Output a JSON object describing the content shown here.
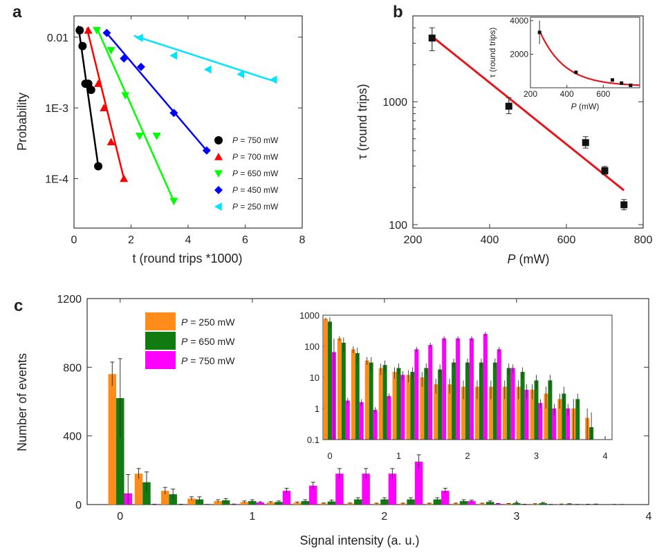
{
  "panels": {
    "a": {
      "letter": "a"
    },
    "b": {
      "letter": "b"
    },
    "c": {
      "letter": "c"
    }
  },
  "chart_data": [
    {
      "id": "a",
      "type": "scatter",
      "xlabel": "t (round trips *1000)",
      "ylabel": "Probability",
      "xlim": [
        0,
        8
      ],
      "ylim": [
        2e-05,
        0.02
      ],
      "yscale": "log",
      "xticks": [
        "0",
        "2",
        "4",
        "6",
        "8"
      ],
      "yticks": [
        {
          "v": 0.01,
          "label": "0.01"
        },
        {
          "v": 0.001,
          "label": "1E-3"
        },
        {
          "v": 0.0001,
          "label": "1E-4"
        }
      ],
      "legend_position": "bottom-right",
      "series": [
        {
          "name": "= 750 mW",
          "prefix": "P",
          "color": "#000000",
          "marker": "circle",
          "x": [
            0.2,
            0.3,
            0.4,
            0.5,
            0.6,
            0.85
          ],
          "y": [
            0.0125,
            0.0075,
            0.0022,
            0.0022,
            0.0018,
            0.00015
          ],
          "fit": [
            [
              0.15,
              0.0145
            ],
            [
              0.85,
              0.00015
            ]
          ]
        },
        {
          "name": "= 700 mW",
          "prefix": "P",
          "color": "#ff0000",
          "marker": "triangle-up",
          "x": [
            0.5,
            0.85,
            1.05,
            1.3,
            1.75
          ],
          "y": [
            0.0125,
            0.0022,
            0.001,
            0.00033,
            0.0001
          ],
          "fit": [
            [
              0.45,
              0.0135
            ],
            [
              1.75,
              0.0001
            ]
          ]
        },
        {
          "name": "= 650 mW",
          "prefix": "P",
          "color": "#00ff00",
          "marker": "triangle-down",
          "x": [
            0.8,
            1.3,
            1.8,
            2.3,
            2.9,
            3.5
          ],
          "y": [
            0.0125,
            0.0065,
            0.0015,
            0.0004,
            0.0004,
            4.8e-05
          ],
          "fit": [
            [
              0.8,
              0.0135
            ],
            [
              3.5,
              4.8e-05
            ]
          ]
        },
        {
          "name": "= 450 mW",
          "prefix": "P",
          "color": "#0000ff",
          "marker": "diamond",
          "x": [
            1.15,
            1.75,
            2.35,
            3.5,
            4.65
          ],
          "y": [
            0.0115,
            0.005,
            0.0038,
            0.00085,
            0.00025
          ],
          "fit": [
            [
              1.1,
              0.012
            ],
            [
              4.65,
              0.00025
            ]
          ]
        },
        {
          "name": "= 250 mW",
          "prefix": "P",
          "color": "#00e5ff",
          "marker": "triangle-left",
          "x": [
            2.3,
            3.5,
            4.7,
            5.85,
            7.0
          ],
          "y": [
            0.0098,
            0.0055,
            0.0035,
            0.003,
            0.0025
          ],
          "fit": [
            [
              2.1,
              0.0105
            ],
            [
              7.0,
              0.0024
            ]
          ]
        }
      ]
    },
    {
      "id": "b",
      "type": "scatter",
      "xlabel_italic": "P",
      "xlabel_rest": " (mW)",
      "ylabel": "τ (round trips)",
      "xlim": [
        200,
        800
      ],
      "ylim": [
        100,
        5000
      ],
      "yscale": "log",
      "xticks": [
        "200",
        "400",
        "600",
        "800"
      ],
      "yticks": [
        {
          "v": 1000,
          "label": "1000"
        },
        {
          "v": 100,
          "label": "100"
        }
      ],
      "points": [
        {
          "x": 250,
          "y": 3300,
          "err": [
            2600,
            4000
          ]
        },
        {
          "x": 450,
          "y": 920,
          "err": [
            800,
            1080
          ]
        },
        {
          "x": 650,
          "y": 465,
          "err": [
            420,
            520
          ]
        },
        {
          "x": 700,
          "y": 275,
          "err": [
            255,
            298
          ]
        },
        {
          "x": 750,
          "y": 145,
          "err": [
            132,
            160
          ]
        }
      ],
      "fit": [
        [
          250,
          3400
        ],
        [
          750,
          190
        ]
      ],
      "fit_color": "#e8141b",
      "inset": {
        "xlabel_italic": "P",
        "xlabel_rest": " (mW)",
        "ylabel": "τ (round trips)",
        "xlim": [
          200,
          800
        ],
        "ylim": [
          0,
          4200
        ],
        "xticks": [
          "200",
          "400",
          "600"
        ],
        "yticks": [
          "2000",
          "4000"
        ],
        "points": [
          {
            "x": 250,
            "y": 3300,
            "err": [
              2600,
              4000
            ]
          },
          {
            "x": 450,
            "y": 920,
            "err": [
              850,
              990
            ]
          },
          {
            "x": 650,
            "y": 465,
            "err": [
              420,
              510
            ]
          },
          {
            "x": 700,
            "y": 275,
            "err": [
              255,
              295
            ]
          },
          {
            "x": 750,
            "y": 145,
            "err": [
              130,
              160
            ]
          }
        ]
      }
    },
    {
      "id": "c",
      "type": "bar",
      "xlabel": "Signal intensity (a. u.)",
      "ylabel": "Number of events",
      "xlim": [
        -0.25,
        4
      ],
      "ylim": [
        0,
        1200
      ],
      "xticks": [
        "0",
        "1",
        "2",
        "3",
        "4"
      ],
      "yticks": [
        "0",
        "400",
        "800",
        "1200"
      ],
      "legend_position": "top-left",
      "bin_centers": [
        0,
        0.2,
        0.4,
        0.6,
        0.8,
        1.0,
        1.2,
        1.4,
        1.6,
        1.8,
        2.0,
        2.2,
        2.4,
        2.6,
        2.8,
        3.0,
        3.2,
        3.4,
        3.6,
        3.8
      ],
      "series": [
        {
          "name": "= 250 mW",
          "prefix": "P",
          "color": "#ff8c1a",
          "values": [
            760,
            180,
            80,
            35,
            20,
            15,
            12,
            10,
            6,
            6,
            5,
            5,
            5,
            5,
            5,
            4,
            3,
            2,
            1,
            0.5
          ]
        },
        {
          "name": "= 650 mW",
          "prefix": "P",
          "color": "#117a11",
          "values": [
            620,
            130,
            60,
            30,
            25,
            20,
            15,
            20,
            18,
            30,
            30,
            30,
            30,
            20,
            15,
            8,
            8,
            3,
            2,
            0.25
          ]
        },
        {
          "name": "= 750 mW",
          "prefix": "P",
          "color": "#ff00ff",
          "values": [
            65,
            1.8,
            1.6,
            0.9,
            2.5,
            12,
            80,
            110,
            180,
            180,
            180,
            250,
            80,
            20,
            4,
            1.5,
            1,
            1,
            0,
            0
          ]
        }
      ],
      "errors": [
        [
          70,
          30,
          20,
          10,
          8,
          6,
          5,
          5,
          3,
          3,
          3,
          3,
          3,
          3,
          3,
          2,
          2,
          1,
          1,
          0.5
        ],
        [
          230,
          60,
          30,
          15,
          10,
          8,
          6,
          8,
          8,
          10,
          10,
          10,
          10,
          8,
          6,
          4,
          4,
          2,
          1,
          0.5
        ],
        [
          110,
          0.4,
          0.4,
          0.2,
          0.5,
          4,
          15,
          20,
          30,
          30,
          30,
          40,
          15,
          6,
          2,
          0.5,
          0.4,
          0.4,
          0,
          0
        ]
      ],
      "inset": {
        "xlim": [
          -0.1,
          4.1
        ],
        "ylim": [
          0.1,
          1000
        ],
        "yscale": "log",
        "xticks": [
          "0",
          "1",
          "2",
          "3",
          "4"
        ],
        "yticks": [
          {
            "v": 1000,
            "label": "1000"
          },
          {
            "v": 100,
            "label": "100"
          },
          {
            "v": 10,
            "label": "10"
          },
          {
            "v": 1,
            "label": "1"
          },
          {
            "v": 0.1,
            "label": "0.1"
          }
        ]
      }
    }
  ]
}
